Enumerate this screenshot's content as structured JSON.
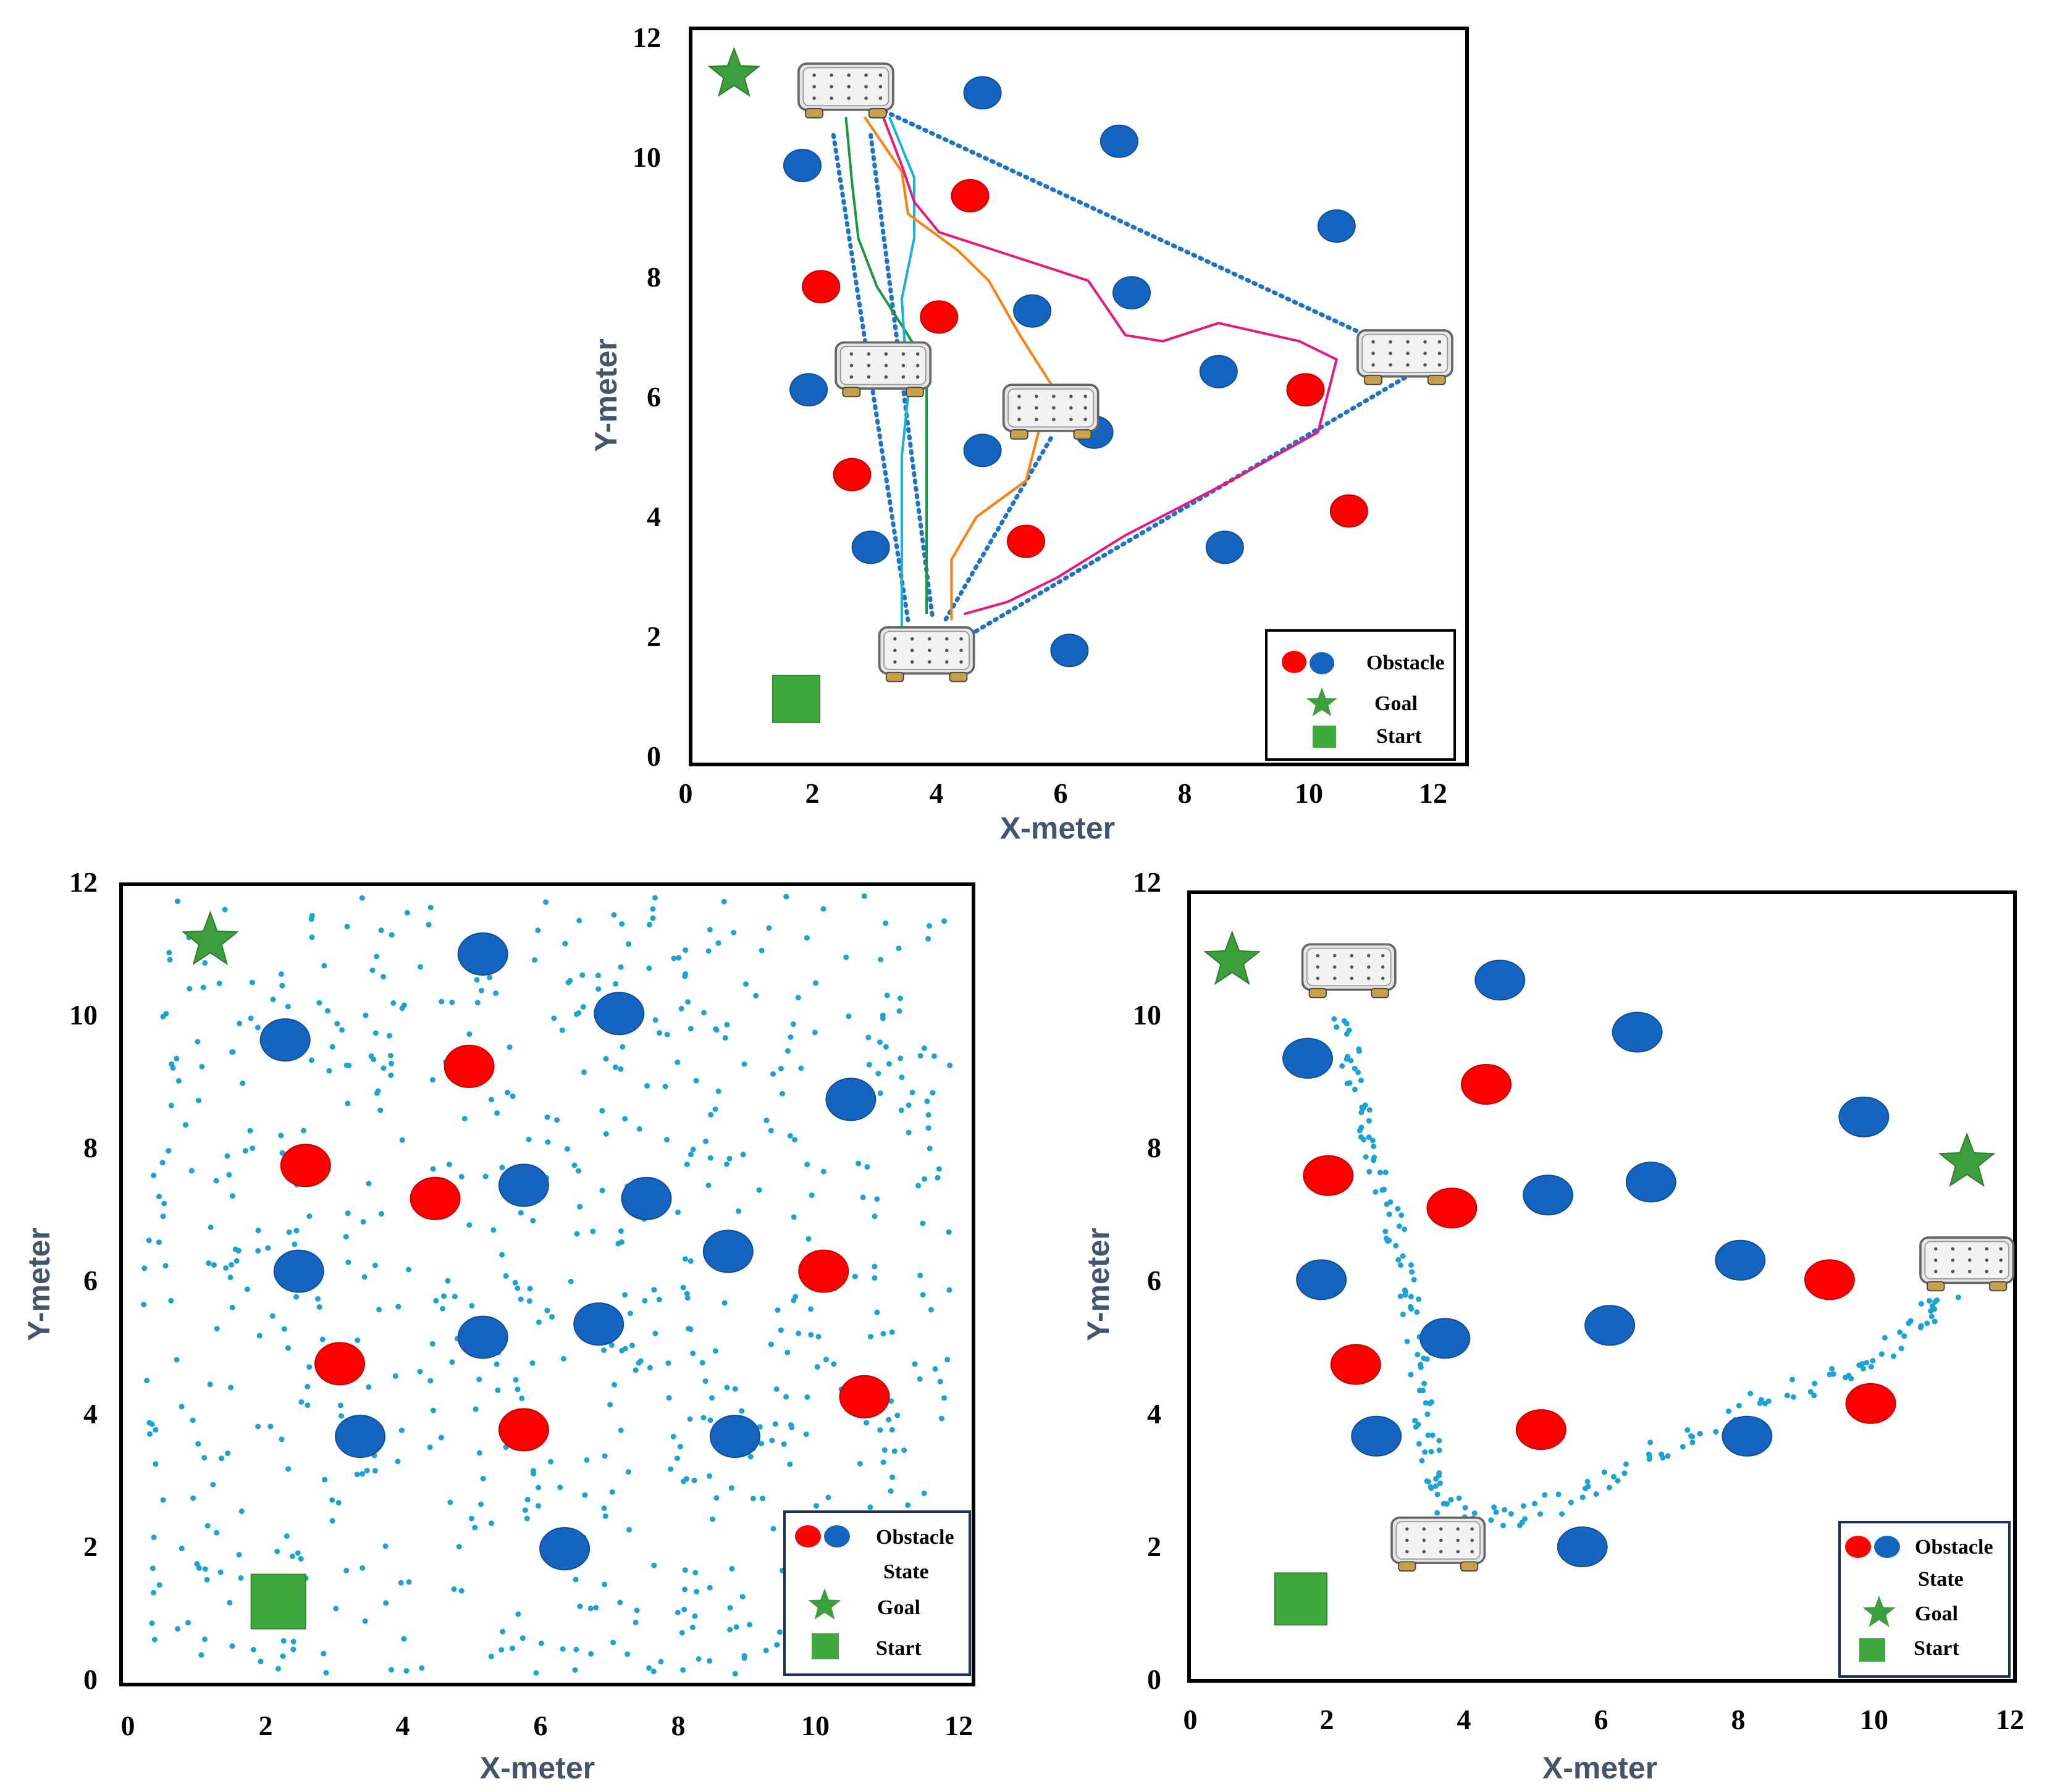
{
  "colors": {
    "red_obstacle": "#ff0000",
    "blue_obstacle": "#1565c0",
    "goal": "#3c9e3c",
    "start": "#3fa83f",
    "state_dots": "#1aa3d4",
    "dotted_path": "#1e73c8",
    "axis_label": "#44546a"
  },
  "chart_data": [
    {
      "type": "scatter",
      "panel": "top",
      "xlabel": "X-meter",
      "ylabel": "Y-meter",
      "xlim": [
        0,
        12.5
      ],
      "ylim": [
        0,
        12
      ],
      "x_ticks": [
        "0",
        "2",
        "4",
        "6",
        "8",
        "10",
        "12"
      ],
      "y_ticks": [
        "0",
        "2",
        "4",
        "6",
        "8",
        "10",
        "12"
      ],
      "legend": {
        "position": "bottom-right",
        "items": [
          {
            "label": "Obstacle",
            "symbol": "obstacle"
          },
          {
            "label": "Goal",
            "symbol": "star"
          },
          {
            "label": "Start",
            "symbol": "square"
          }
        ]
      },
      "goal": [
        0.7,
        11.3
      ],
      "start": [
        1.7,
        1.0
      ],
      "obstacles": [
        {
          "x": 4.7,
          "y": 11.0,
          "color": "blue"
        },
        {
          "x": 6.9,
          "y": 10.2,
          "color": "blue"
        },
        {
          "x": 1.8,
          "y": 9.8,
          "color": "blue"
        },
        {
          "x": 4.5,
          "y": 9.3,
          "color": "red"
        },
        {
          "x": 10.4,
          "y": 8.8,
          "color": "blue"
        },
        {
          "x": 2.1,
          "y": 7.8,
          "color": "red"
        },
        {
          "x": 7.1,
          "y": 7.7,
          "color": "blue"
        },
        {
          "x": 4.0,
          "y": 7.3,
          "color": "red"
        },
        {
          "x": 5.5,
          "y": 7.4,
          "color": "blue"
        },
        {
          "x": 1.9,
          "y": 6.1,
          "color": "blue"
        },
        {
          "x": 8.5,
          "y": 6.4,
          "color": "blue"
        },
        {
          "x": 9.9,
          "y": 6.1,
          "color": "red"
        },
        {
          "x": 6.5,
          "y": 5.4,
          "color": "blue"
        },
        {
          "x": 4.7,
          "y": 5.1,
          "color": "blue"
        },
        {
          "x": 2.6,
          "y": 4.7,
          "color": "red"
        },
        {
          "x": 10.6,
          "y": 4.1,
          "color": "red"
        },
        {
          "x": 2.9,
          "y": 3.5,
          "color": "blue"
        },
        {
          "x": 5.4,
          "y": 3.6,
          "color": "red"
        },
        {
          "x": 8.6,
          "y": 3.5,
          "color": "blue"
        },
        {
          "x": 6.1,
          "y": 1.8,
          "color": "blue"
        }
      ],
      "robots": [
        {
          "x": 2.5,
          "y": 11.1
        },
        {
          "x": 3.1,
          "y": 6.5
        },
        {
          "x": 5.8,
          "y": 5.8
        },
        {
          "x": 11.5,
          "y": 6.7
        },
        {
          "x": 3.8,
          "y": 1.8
        }
      ],
      "dotted_paths": [
        [
          [
            2.9,
            10.8
          ],
          [
            11.5,
            6.7
          ]
        ],
        [
          [
            2.3,
            10.3
          ],
          [
            3.5,
            2.3
          ]
        ],
        [
          [
            2.9,
            10.3
          ],
          [
            3.9,
            2.3
          ]
        ],
        [
          [
            11.5,
            6.3
          ],
          [
            4.4,
            2.0
          ]
        ],
        [
          [
            5.8,
            5.3
          ],
          [
            4.1,
            2.3
          ]
        ]
      ],
      "series": [
        {
          "name": "green",
          "color": "#1a9641",
          "points": [
            [
              2.5,
              10.6
            ],
            [
              2.6,
              9.5
            ],
            [
              2.7,
              8.6
            ],
            [
              3.0,
              7.8
            ],
            [
              3.5,
              7.0
            ],
            [
              3.8,
              6.5
            ],
            [
              3.8,
              4.4
            ],
            [
              3.8,
              2.4
            ]
          ]
        },
        {
          "name": "cyan",
          "color": "#1ab0d8",
          "points": [
            [
              3.2,
              10.6
            ],
            [
              3.6,
              9.6
            ],
            [
              3.6,
              8.6
            ],
            [
              3.4,
              7.6
            ],
            [
              3.5,
              6.0
            ],
            [
              3.4,
              5.0
            ],
            [
              3.4,
              4.0
            ],
            [
              3.4,
              2.1
            ]
          ]
        },
        {
          "name": "orange",
          "color": "#ff7f0e",
          "points": [
            [
              2.8,
              10.6
            ],
            [
              3.4,
              9.7
            ],
            [
              3.5,
              9.0
            ],
            [
              4.3,
              8.4
            ],
            [
              4.8,
              7.9
            ],
            [
              5.3,
              7.0
            ],
            [
              5.8,
              6.2
            ],
            [
              5.4,
              4.6
            ],
            [
              4.6,
              4.0
            ],
            [
              4.2,
              3.3
            ],
            [
              4.2,
              2.3
            ]
          ]
        },
        {
          "name": "magenta",
          "color": "#e8197a",
          "points": [
            [
              3.1,
              10.6
            ],
            [
              3.4,
              9.8
            ],
            [
              3.6,
              9.2
            ],
            [
              4.0,
              8.7
            ],
            [
              5.5,
              8.2
            ],
            [
              6.4,
              7.9
            ],
            [
              7.0,
              7.0
            ],
            [
              7.6,
              6.9
            ],
            [
              8.5,
              7.2
            ],
            [
              9.8,
              6.9
            ],
            [
              10.4,
              6.6
            ],
            [
              10.1,
              5.4
            ],
            [
              8.7,
              4.6
            ],
            [
              7.0,
              3.7
            ],
            [
              5.9,
              3.0
            ],
            [
              5.1,
              2.6
            ],
            [
              4.4,
              2.4
            ]
          ]
        }
      ]
    },
    {
      "type": "scatter",
      "panel": "bottom-left",
      "xlabel": "X-meter",
      "ylabel": "Y-meter",
      "xlim": [
        0,
        12.4
      ],
      "ylim": [
        0,
        12
      ],
      "x_ticks": [
        "0",
        "2",
        "4",
        "6",
        "8",
        "10",
        "12"
      ],
      "y_ticks": [
        "0",
        "2",
        "4",
        "6",
        "8",
        "10",
        "12"
      ],
      "legend": {
        "position": "bottom-right",
        "items": [
          {
            "label": "Obstacle",
            "symbol": "obstacle"
          },
          {
            "label": "State",
            "symbol": "none"
          },
          {
            "label": "Goal",
            "symbol": "star"
          },
          {
            "label": "Start",
            "symbol": "square"
          }
        ]
      },
      "goal": [
        1.2,
        11.2
      ],
      "start": [
        2.2,
        1.2
      ],
      "state_points": "random uniform sample of ~700 states over the workspace",
      "obstacles": [
        {
          "x": 5.2,
          "y": 11.0,
          "color": "blue"
        },
        {
          "x": 7.2,
          "y": 10.1,
          "color": "blue"
        },
        {
          "x": 2.3,
          "y": 9.7,
          "color": "blue"
        },
        {
          "x": 5.0,
          "y": 9.3,
          "color": "red"
        },
        {
          "x": 10.6,
          "y": 8.8,
          "color": "blue"
        },
        {
          "x": 2.6,
          "y": 7.8,
          "color": "red"
        },
        {
          "x": 4.5,
          "y": 7.3,
          "color": "red"
        },
        {
          "x": 5.8,
          "y": 7.5,
          "color": "blue"
        },
        {
          "x": 7.6,
          "y": 7.3,
          "color": "blue"
        },
        {
          "x": 2.5,
          "y": 6.2,
          "color": "blue"
        },
        {
          "x": 8.8,
          "y": 6.5,
          "color": "blue"
        },
        {
          "x": 10.2,
          "y": 6.2,
          "color": "red"
        },
        {
          "x": 5.2,
          "y": 5.2,
          "color": "blue"
        },
        {
          "x": 6.9,
          "y": 5.4,
          "color": "blue"
        },
        {
          "x": 3.1,
          "y": 4.8,
          "color": "red"
        },
        {
          "x": 10.8,
          "y": 4.3,
          "color": "red"
        },
        {
          "x": 3.4,
          "y": 3.7,
          "color": "blue"
        },
        {
          "x": 5.8,
          "y": 3.8,
          "color": "red"
        },
        {
          "x": 8.9,
          "y": 3.7,
          "color": "blue"
        },
        {
          "x": 6.4,
          "y": 2.0,
          "color": "blue"
        }
      ]
    },
    {
      "type": "scatter",
      "panel": "bottom-right",
      "xlabel": "X-meter",
      "ylabel": "Y-meter",
      "xlim": [
        0,
        12
      ],
      "ylim": [
        0,
        12
      ],
      "x_ticks": [
        "0",
        "2",
        "4",
        "6",
        "8",
        "10",
        "12"
      ],
      "y_ticks": [
        "0",
        "2",
        "4",
        "6",
        "8",
        "10",
        "12"
      ],
      "legend": {
        "position": "bottom-right",
        "items": [
          {
            "label": "Obstacle",
            "symbol": "obstacle"
          },
          {
            "label": "State",
            "symbol": "none"
          },
          {
            "label": "Goal",
            "symbol": "star"
          },
          {
            "label": "Start",
            "symbol": "square"
          }
        ]
      },
      "goals": [
        [
          0.6,
          11.0
        ],
        [
          11.3,
          7.9
        ]
      ],
      "start": [
        1.6,
        1.2
      ],
      "obstacles": [
        {
          "x": 4.5,
          "y": 10.7,
          "color": "blue"
        },
        {
          "x": 6.5,
          "y": 9.9,
          "color": "blue"
        },
        {
          "x": 1.7,
          "y": 9.5,
          "color": "blue"
        },
        {
          "x": 4.3,
          "y": 9.1,
          "color": "red"
        },
        {
          "x": 9.8,
          "y": 8.6,
          "color": "blue"
        },
        {
          "x": 2.0,
          "y": 7.7,
          "color": "red"
        },
        {
          "x": 3.8,
          "y": 7.2,
          "color": "red"
        },
        {
          "x": 5.2,
          "y": 7.4,
          "color": "blue"
        },
        {
          "x": 6.7,
          "y": 7.6,
          "color": "blue"
        },
        {
          "x": 1.9,
          "y": 6.1,
          "color": "blue"
        },
        {
          "x": 8.0,
          "y": 6.4,
          "color": "blue"
        },
        {
          "x": 9.3,
          "y": 6.1,
          "color": "red"
        },
        {
          "x": 3.7,
          "y": 5.2,
          "color": "blue"
        },
        {
          "x": 6.1,
          "y": 5.4,
          "color": "blue"
        },
        {
          "x": 2.4,
          "y": 4.8,
          "color": "red"
        },
        {
          "x": 9.9,
          "y": 4.2,
          "color": "red"
        },
        {
          "x": 2.7,
          "y": 3.7,
          "color": "blue"
        },
        {
          "x": 5.1,
          "y": 3.8,
          "color": "red"
        },
        {
          "x": 8.1,
          "y": 3.7,
          "color": "blue"
        },
        {
          "x": 5.7,
          "y": 2.0,
          "color": "blue"
        }
      ],
      "robots": [
        {
          "x": 2.3,
          "y": 10.9
        },
        {
          "x": 11.3,
          "y": 6.4
        },
        {
          "x": 3.6,
          "y": 2.1
        }
      ],
      "state_trail": [
        [
          2.2,
          10.1
        ],
        [
          2.4,
          9.2
        ],
        [
          2.6,
          8.2
        ],
        [
          2.9,
          7.2
        ],
        [
          3.1,
          6.2
        ],
        [
          3.3,
          5.2
        ],
        [
          3.4,
          4.2
        ],
        [
          3.5,
          3.2
        ],
        [
          3.8,
          2.5
        ],
        [
          4.8,
          2.4
        ],
        [
          6.0,
          3.0
        ],
        [
          7.2,
          3.6
        ],
        [
          8.5,
          4.3
        ],
        [
          9.7,
          4.8
        ],
        [
          10.6,
          5.4
        ],
        [
          11.1,
          6.0
        ]
      ]
    }
  ]
}
